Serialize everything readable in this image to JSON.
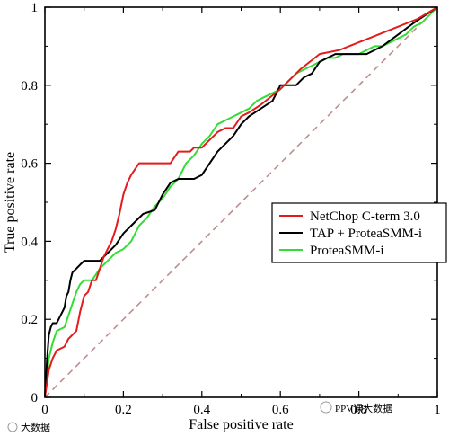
{
  "chart_data": {
    "type": "line",
    "title": "",
    "xlabel": "False positive rate",
    "ylabel": "True positive rate",
    "xlim": [
      0,
      1
    ],
    "ylim": [
      0,
      1
    ],
    "xticks": [
      0,
      0.2,
      0.4,
      0.6,
      0.8,
      1
    ],
    "yticks": [
      0,
      0.2,
      0.4,
      0.6,
      0.8,
      1
    ],
    "xtick_labels": [
      "0",
      "0.2",
      "0.4",
      "0.6",
      "0.8",
      "1"
    ],
    "ytick_labels": [
      "0",
      "0.2",
      "0.4",
      "0.6",
      "0.8",
      "1"
    ],
    "grid": false,
    "legend_position": "right",
    "diagonal_reference": {
      "color": "#bc8f8f",
      "style": "dashed",
      "points": [
        [
          0,
          0
        ],
        [
          1,
          1
        ]
      ]
    },
    "series": [
      {
        "name": "NetChop C-term 3.0",
        "color": "#e41a1c",
        "points": [
          [
            0,
            0
          ],
          [
            0.01,
            0.07
          ],
          [
            0.02,
            0.1
          ],
          [
            0.03,
            0.12
          ],
          [
            0.05,
            0.13
          ],
          [
            0.06,
            0.15
          ],
          [
            0.08,
            0.17
          ],
          [
            0.09,
            0.22
          ],
          [
            0.1,
            0.26
          ],
          [
            0.11,
            0.27
          ],
          [
            0.12,
            0.3
          ],
          [
            0.13,
            0.3
          ],
          [
            0.14,
            0.33
          ],
          [
            0.15,
            0.36
          ],
          [
            0.16,
            0.38
          ],
          [
            0.17,
            0.4
          ],
          [
            0.18,
            0.43
          ],
          [
            0.19,
            0.47
          ],
          [
            0.2,
            0.52
          ],
          [
            0.21,
            0.55
          ],
          [
            0.22,
            0.57
          ],
          [
            0.24,
            0.6
          ],
          [
            0.26,
            0.6
          ],
          [
            0.28,
            0.6
          ],
          [
            0.3,
            0.6
          ],
          [
            0.32,
            0.6
          ],
          [
            0.34,
            0.63
          ],
          [
            0.37,
            0.63
          ],
          [
            0.38,
            0.64
          ],
          [
            0.4,
            0.64
          ],
          [
            0.42,
            0.66
          ],
          [
            0.44,
            0.68
          ],
          [
            0.46,
            0.69
          ],
          [
            0.48,
            0.69
          ],
          [
            0.5,
            0.72
          ],
          [
            0.52,
            0.73
          ],
          [
            0.55,
            0.75
          ],
          [
            0.6,
            0.79
          ],
          [
            0.65,
            0.84
          ],
          [
            0.7,
            0.88
          ],
          [
            0.75,
            0.89
          ],
          [
            0.8,
            0.91
          ],
          [
            0.85,
            0.93
          ],
          [
            0.9,
            0.95
          ],
          [
            0.95,
            0.97
          ],
          [
            1,
            1
          ]
        ]
      },
      {
        "name": "TAP + ProteaSMM-i",
        "color": "#000000",
        "points": [
          [
            0,
            0
          ],
          [
            0.005,
            0.09
          ],
          [
            0.01,
            0.16
          ],
          [
            0.015,
            0.18
          ],
          [
            0.02,
            0.19
          ],
          [
            0.03,
            0.19
          ],
          [
            0.035,
            0.2
          ],
          [
            0.05,
            0.23
          ],
          [
            0.055,
            0.26
          ],
          [
            0.06,
            0.27
          ],
          [
            0.065,
            0.3
          ],
          [
            0.07,
            0.32
          ],
          [
            0.08,
            0.33
          ],
          [
            0.09,
            0.34
          ],
          [
            0.1,
            0.35
          ],
          [
            0.12,
            0.35
          ],
          [
            0.14,
            0.35
          ],
          [
            0.16,
            0.37
          ],
          [
            0.18,
            0.39
          ],
          [
            0.2,
            0.42
          ],
          [
            0.22,
            0.44
          ],
          [
            0.25,
            0.47
          ],
          [
            0.28,
            0.48
          ],
          [
            0.3,
            0.52
          ],
          [
            0.32,
            0.55
          ],
          [
            0.34,
            0.56
          ],
          [
            0.36,
            0.56
          ],
          [
            0.38,
            0.56
          ],
          [
            0.4,
            0.57
          ],
          [
            0.42,
            0.6
          ],
          [
            0.44,
            0.63
          ],
          [
            0.46,
            0.65
          ],
          [
            0.48,
            0.67
          ],
          [
            0.5,
            0.7
          ],
          [
            0.52,
            0.72
          ],
          [
            0.55,
            0.74
          ],
          [
            0.58,
            0.76
          ],
          [
            0.6,
            0.8
          ],
          [
            0.62,
            0.8
          ],
          [
            0.64,
            0.8
          ],
          [
            0.66,
            0.82
          ],
          [
            0.68,
            0.83
          ],
          [
            0.7,
            0.86
          ],
          [
            0.72,
            0.87
          ],
          [
            0.74,
            0.88
          ],
          [
            0.78,
            0.88
          ],
          [
            0.82,
            0.88
          ],
          [
            0.86,
            0.9
          ],
          [
            0.9,
            0.93
          ],
          [
            0.94,
            0.96
          ],
          [
            0.97,
            0.98
          ],
          [
            1,
            1
          ]
        ]
      },
      {
        "name": "ProteaSMM-i",
        "color": "#33dd33",
        "points": [
          [
            0,
            0
          ],
          [
            0.01,
            0.1
          ],
          [
            0.02,
            0.14
          ],
          [
            0.03,
            0.17
          ],
          [
            0.05,
            0.18
          ],
          [
            0.06,
            0.21
          ],
          [
            0.07,
            0.24
          ],
          [
            0.08,
            0.27
          ],
          [
            0.09,
            0.29
          ],
          [
            0.1,
            0.3
          ],
          [
            0.12,
            0.3
          ],
          [
            0.14,
            0.33
          ],
          [
            0.16,
            0.35
          ],
          [
            0.18,
            0.37
          ],
          [
            0.2,
            0.38
          ],
          [
            0.22,
            0.4
          ],
          [
            0.24,
            0.44
          ],
          [
            0.26,
            0.46
          ],
          [
            0.28,
            0.49
          ],
          [
            0.3,
            0.51
          ],
          [
            0.32,
            0.54
          ],
          [
            0.34,
            0.56
          ],
          [
            0.36,
            0.6
          ],
          [
            0.38,
            0.62
          ],
          [
            0.4,
            0.65
          ],
          [
            0.42,
            0.67
          ],
          [
            0.44,
            0.7
          ],
          [
            0.46,
            0.71
          ],
          [
            0.48,
            0.72
          ],
          [
            0.5,
            0.73
          ],
          [
            0.52,
            0.74
          ],
          [
            0.54,
            0.76
          ],
          [
            0.56,
            0.77
          ],
          [
            0.58,
            0.78
          ],
          [
            0.6,
            0.79
          ],
          [
            0.62,
            0.81
          ],
          [
            0.64,
            0.83
          ],
          [
            0.66,
            0.84
          ],
          [
            0.68,
            0.85
          ],
          [
            0.7,
            0.86
          ],
          [
            0.72,
            0.87
          ],
          [
            0.74,
            0.87
          ],
          [
            0.76,
            0.88
          ],
          [
            0.78,
            0.88
          ],
          [
            0.8,
            0.88
          ],
          [
            0.82,
            0.89
          ],
          [
            0.84,
            0.9
          ],
          [
            0.86,
            0.9
          ],
          [
            0.88,
            0.91
          ],
          [
            0.9,
            0.92
          ],
          [
            0.92,
            0.93
          ],
          [
            0.94,
            0.95
          ],
          [
            0.96,
            0.96
          ],
          [
            0.98,
            0.98
          ],
          [
            1,
            1
          ]
        ]
      }
    ]
  },
  "watermark": {
    "left_text": "大数据",
    "right_text": "PPV课大数据"
  }
}
